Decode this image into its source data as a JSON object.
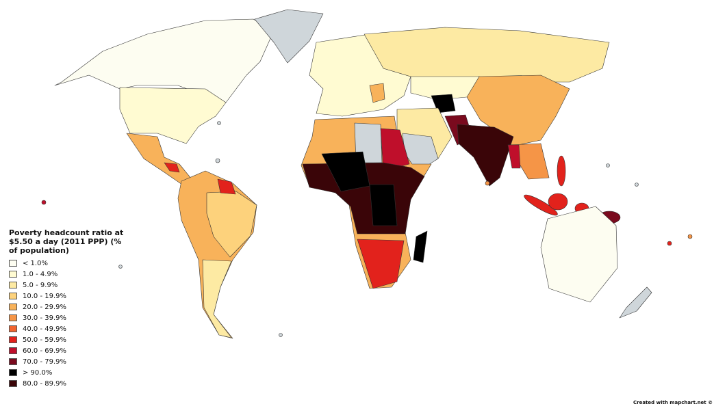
{
  "legend": {
    "title": "Poverty headcount ratio at $5.50 a day (2011 PPP) (% of population)",
    "items": [
      {
        "label": "< 1.0%",
        "color": "#fdfdf1"
      },
      {
        "label": "1.0 - 4.9%",
        "color": "#fffbd2"
      },
      {
        "label": "5.0 - 9.9%",
        "color": "#fdeaa3"
      },
      {
        "label": "10.0 - 19.9%",
        "color": "#fdd27c"
      },
      {
        "label": "20.0 - 29.9%",
        "color": "#f8b25a"
      },
      {
        "label": "30.0 - 39.9%",
        "color": "#f59547"
      },
      {
        "label": "40.0 - 49.9%",
        "color": "#f1652f"
      },
      {
        "label": "50.0 - 59.9%",
        "color": "#e2221c"
      },
      {
        "label": "60.0 - 69.9%",
        "color": "#bf0f2b"
      },
      {
        "label": "70.0 - 79.9%",
        "color": "#7a0a1e"
      },
      {
        "label": "> 90.0%",
        "color": "#000000"
      },
      {
        "label": "80.0 - 89.9%",
        "color": "#3a0508"
      }
    ]
  },
  "credit": "Created with mapchart.net ©"
}
